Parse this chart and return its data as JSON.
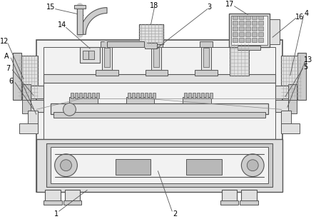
{
  "bg": "#ffffff",
  "lc": "#555555",
  "fc_main": "#f2f2f2",
  "fc_mid": "#e0e0e0",
  "fc_dark": "#cccccc",
  "fc_darker": "#b8b8b8",
  "grid_c": "#aaaaaa"
}
